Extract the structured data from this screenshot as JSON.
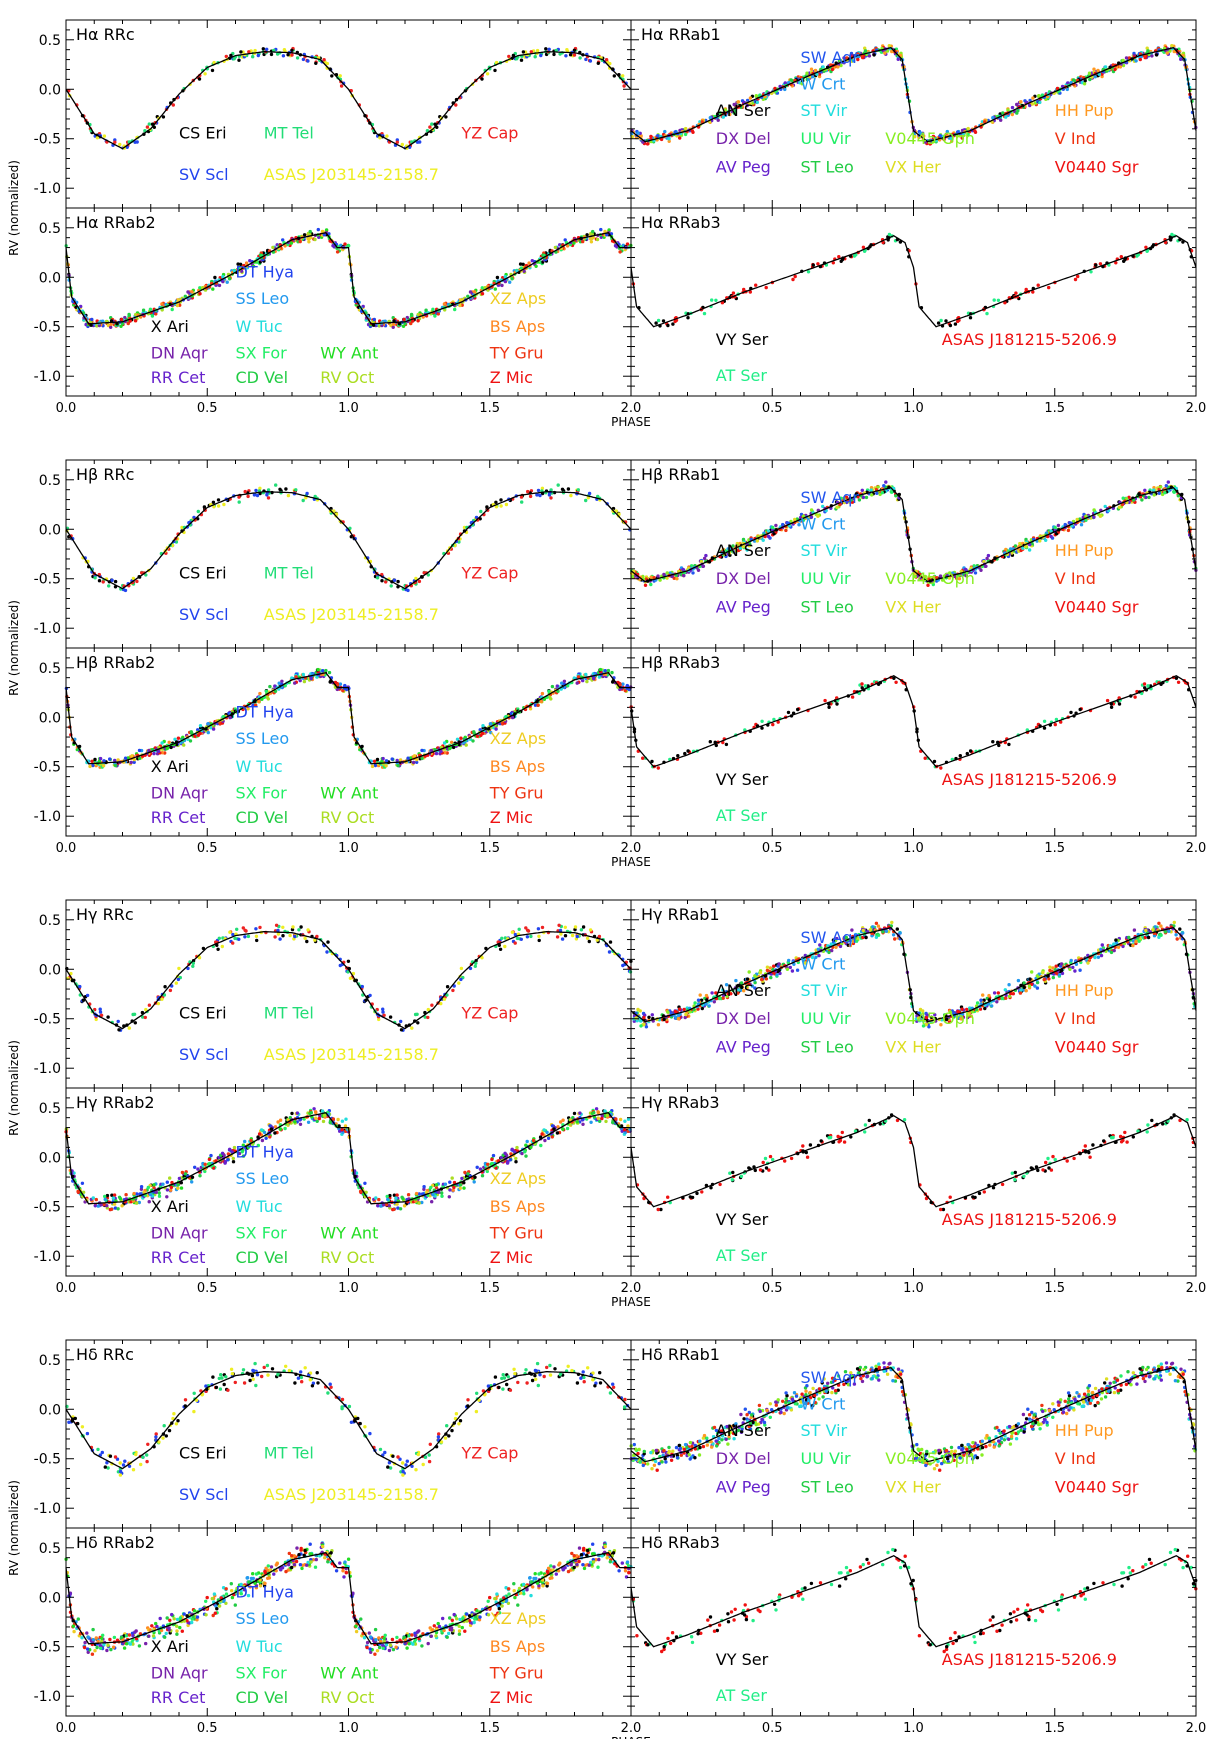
{
  "figure": {
    "ylabel": "RV (normalized)",
    "xlabel": "PHASE",
    "x_ticks": [
      "0.0",
      "0.5",
      "1.0",
      "1.5",
      "2.0"
    ],
    "y_ticks": [
      "-1.0",
      "-0.5",
      "0.0",
      "0.5"
    ]
  },
  "groups": {
    "RRc": {
      "labels": [
        {
          "text": "CS Eri",
          "color": "#000000",
          "fx": 0.2,
          "fy": 0.63
        },
        {
          "text": "SV Scl",
          "color": "#2244ee",
          "fx": 0.2,
          "fy": 0.85
        },
        {
          "text": "MT Tel",
          "color": "#22dd77",
          "fx": 0.35,
          "fy": 0.63
        },
        {
          "text": "ASAS J203145-2158.7",
          "color": "#eeee22",
          "fx": 0.35,
          "fy": 0.85
        },
        {
          "text": "YZ Cap",
          "color": "#ee2222",
          "fx": 0.7,
          "fy": 0.63
        }
      ]
    },
    "RRab1": {
      "labels": [
        {
          "text": "SW Aqr",
          "color": "#2255ee",
          "fx": 0.3,
          "fy": 0.23
        },
        {
          "text": "W Crt",
          "color": "#2299ee",
          "fx": 0.3,
          "fy": 0.37
        },
        {
          "text": "AN Ser",
          "color": "#000000",
          "fx": 0.15,
          "fy": 0.51
        },
        {
          "text": "ST Vir",
          "color": "#22dddd",
          "fx": 0.3,
          "fy": 0.51
        },
        {
          "text": "DX Del",
          "color": "#7722aa",
          "fx": 0.15,
          "fy": 0.66
        },
        {
          "text": "UU Vir",
          "color": "#22ee66",
          "fx": 0.3,
          "fy": 0.66
        },
        {
          "text": "V0445 Oph",
          "color": "#88ee22",
          "fx": 0.45,
          "fy": 0.66
        },
        {
          "text": "AV Peg",
          "color": "#6622cc",
          "fx": 0.15,
          "fy": 0.81
        },
        {
          "text": "ST Leo",
          "color": "#22cc44",
          "fx": 0.3,
          "fy": 0.81
        },
        {
          "text": "VX Her",
          "color": "#dddd22",
          "fx": 0.45,
          "fy": 0.81
        },
        {
          "text": "HH Pup",
          "color": "#ff9922",
          "fx": 0.75,
          "fy": 0.51
        },
        {
          "text": "V Ind",
          "color": "#ee3311",
          "fx": 0.75,
          "fy": 0.66
        },
        {
          "text": "V0440 Sgr",
          "color": "#ee1111",
          "fx": 0.75,
          "fy": 0.81
        }
      ]
    },
    "RRab2": {
      "labels": [
        {
          "text": "DT Hya",
          "color": "#2244ee",
          "fx": 0.3,
          "fy": 0.37
        },
        {
          "text": "SS Leo",
          "color": "#2299ee",
          "fx": 0.3,
          "fy": 0.51
        },
        {
          "text": "X Ari",
          "color": "#000000",
          "fx": 0.15,
          "fy": 0.66
        },
        {
          "text": "W Tuc",
          "color": "#22dddd",
          "fx": 0.3,
          "fy": 0.66
        },
        {
          "text": "DN Aqr",
          "color": "#7722aa",
          "fx": 0.15,
          "fy": 0.8
        },
        {
          "text": "SX For",
          "color": "#22ee66",
          "fx": 0.3,
          "fy": 0.8
        },
        {
          "text": "WY Ant",
          "color": "#22dd22",
          "fx": 0.45,
          "fy": 0.8
        },
        {
          "text": "RR Cet",
          "color": "#6622cc",
          "fx": 0.15,
          "fy": 0.93
        },
        {
          "text": "CD Vel",
          "color": "#22cc44",
          "fx": 0.3,
          "fy": 0.93
        },
        {
          "text": "RV Oct",
          "color": "#aadd22",
          "fx": 0.45,
          "fy": 0.93
        },
        {
          "text": "XZ Aps",
          "color": "#eecc22",
          "fx": 0.75,
          "fy": 0.51
        },
        {
          "text": "BS Aps",
          "color": "#ff8822",
          "fx": 0.75,
          "fy": 0.66
        },
        {
          "text": "TY Gru",
          "color": "#ee3311",
          "fx": 0.75,
          "fy": 0.8
        },
        {
          "text": "Z Mic",
          "color": "#ee1111",
          "fx": 0.75,
          "fy": 0.93
        }
      ]
    },
    "RRab3": {
      "labels": [
        {
          "text": "VY Ser",
          "color": "#000000",
          "fx": 0.15,
          "fy": 0.73
        },
        {
          "text": "AT Ser",
          "color": "#22ee88",
          "fx": 0.15,
          "fy": 0.92
        },
        {
          "text": "ASAS J181215-5206.9",
          "color": "#ee1111",
          "fx": 0.55,
          "fy": 0.73
        }
      ]
    }
  },
  "rows": [
    {
      "line": "Hα",
      "y_ticks": [
        "-1.0",
        "-0.5",
        "0.0",
        "0.5"
      ],
      "panels": [
        {
          "title": "Hα  RRc",
          "group": "RRc"
        },
        {
          "title": "Hα  RRab1",
          "group": "RRab1"
        },
        {
          "title": "Hα  RRab2",
          "group": "RRab2"
        },
        {
          "title": "Hα  RRab3",
          "group": "RRab3"
        }
      ]
    },
    {
      "line": "Hβ",
      "y_ticks": [
        "-1.0",
        "-0.5",
        "0.0",
        "0.5"
      ],
      "panels": [
        {
          "title": "Hβ  RRc",
          "group": "RRc"
        },
        {
          "title": "Hβ  RRab1",
          "group": "RRab1"
        },
        {
          "title": "Hβ  RRab2",
          "group": "RRab2"
        },
        {
          "title": "Hβ  RRab3",
          "group": "RRab3"
        }
      ]
    },
    {
      "line": "Hγ",
      "y_ticks": [
        "-1.0",
        "-0.5",
        "0.0",
        "0.5"
      ],
      "panels": [
        {
          "title": "Hγ  RRc",
          "group": "RRc"
        },
        {
          "title": "Hγ  RRab1",
          "group": "RRab1"
        },
        {
          "title": "Hγ  RRab2",
          "group": "RRab2"
        },
        {
          "title": "Hγ  RRab3",
          "group": "RRab3"
        }
      ]
    },
    {
      "line": "Hδ",
      "y_ticks": [
        "-1.0",
        "-0.5",
        "0.0",
        "0.5"
      ],
      "panels": [
        {
          "title": "Hδ  RRc",
          "group": "RRc"
        },
        {
          "title": "Hδ  RRab1",
          "group": "RRab1"
        },
        {
          "title": "Hδ  RRab2",
          "group": "RRab2"
        },
        {
          "title": "Hδ  RRab3",
          "group": "RRab3"
        }
      ]
    }
  ],
  "chart_data": {
    "type": "scatter",
    "xlabel": "PHASE",
    "ylabel": "RV (normalized)",
    "xlim": [
      0.0,
      2.0
    ],
    "ylim": [
      -1.2,
      0.7
    ],
    "grid": false,
    "templates": {
      "RRc": {
        "phase": [
          0.0,
          0.1,
          0.2,
          0.3,
          0.4,
          0.5,
          0.6,
          0.7,
          0.8,
          0.9,
          1.0
        ],
        "rv": [
          0.0,
          -0.45,
          -0.6,
          -0.4,
          -0.05,
          0.22,
          0.34,
          0.38,
          0.37,
          0.3,
          0.0
        ]
      },
      "RRab1": {
        "phase": [
          0.0,
          0.05,
          0.2,
          0.4,
          0.6,
          0.8,
          0.92,
          0.96,
          1.0
        ],
        "rv": [
          -0.42,
          -0.53,
          -0.42,
          -0.15,
          0.1,
          0.34,
          0.42,
          0.3,
          -0.42
        ]
      },
      "RRab2": {
        "phase": [
          0.0,
          0.02,
          0.08,
          0.2,
          0.4,
          0.6,
          0.8,
          0.92,
          0.96,
          1.0
        ],
        "rv": [
          0.3,
          -0.2,
          -0.47,
          -0.45,
          -0.25,
          0.05,
          0.38,
          0.45,
          0.3,
          0.3
        ]
      },
      "RRab3": {
        "phase": [
          0.0,
          0.02,
          0.08,
          0.2,
          0.4,
          0.6,
          0.8,
          0.93,
          0.97,
          1.0
        ],
        "rv": [
          0.1,
          -0.3,
          -0.5,
          -0.38,
          -0.15,
          0.05,
          0.25,
          0.42,
          0.35,
          0.1
        ]
      }
    }
  }
}
